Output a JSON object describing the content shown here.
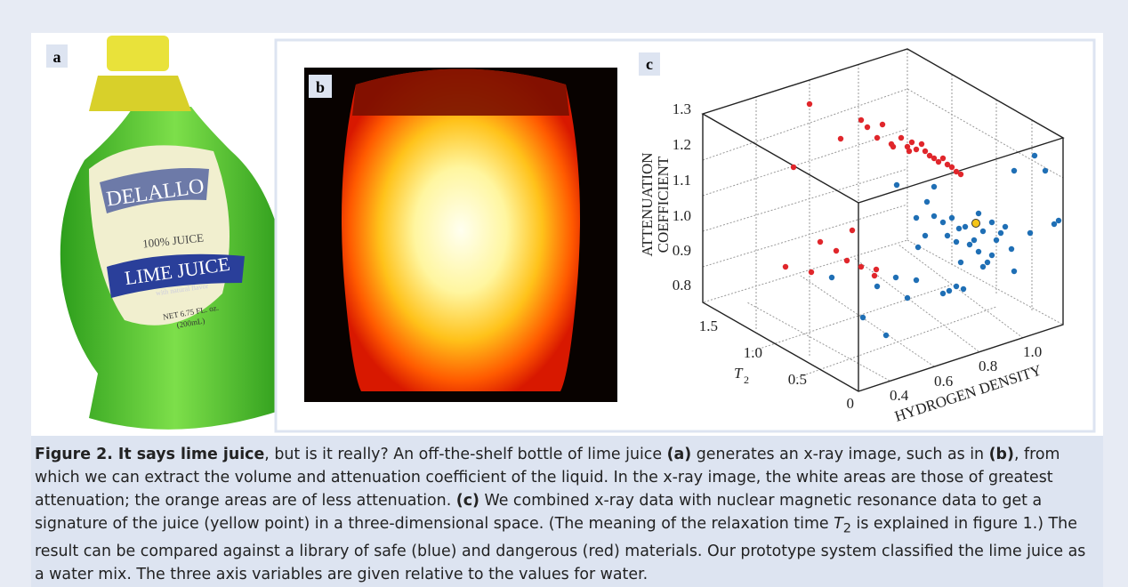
{
  "panel_a": {
    "label": "a",
    "brand": "DELALLO",
    "juice_percent": "100% JUICE",
    "product": "LIME JUICE",
    "flavor_note": "with natural flavor",
    "net_volume": "NET 6.75 FL. oz.",
    "metric_volume": "(200mL)"
  },
  "panel_b": {
    "label": "b"
  },
  "panel_c": {
    "label": "c",
    "z_axis": {
      "title_lines": [
        "ATTENUATION",
        "COEFFICIENT"
      ],
      "ticks": [
        "1.3",
        "1.2",
        "1.1",
        "1.0",
        "0.9",
        "0.8"
      ]
    },
    "t2_axis": {
      "title": "T",
      "title_subscript": "2",
      "ticks": [
        "1.5",
        "1.0",
        "0.5",
        "0"
      ]
    },
    "x_axis": {
      "title": "HYDROGEN DENSITY",
      "ticks": [
        "0.4",
        "0.6",
        "0.8",
        "1.0"
      ]
    }
  },
  "caption": [
    "Figure 2. It says lime juice",
    ", but is it really? An off-the-shelf bottle of lime juice ",
    "(a)",
    " generates an x-ray image, such as in ",
    "(b)",
    ", from which we can extract the volume and attenuation coefficient of the liquid. In the x-ray image, the white areas are those of greatest attenuation; the orange areas are of less attenuation. ",
    "(c)",
    " We combined x-ray data with nuclear magnetic resonance data to get a signature of the juice (yellow point) in a three-dimensional space. (The meaning of the relaxation time ",
    "T",
    "2",
    " is explained in figure 1.) The result can be compared against a library of safe (blue) and dangerous (red) materials. Our prototype system classified the lime juice as a water mix. The three axis variables are given relative to the values for water."
  ]
}
